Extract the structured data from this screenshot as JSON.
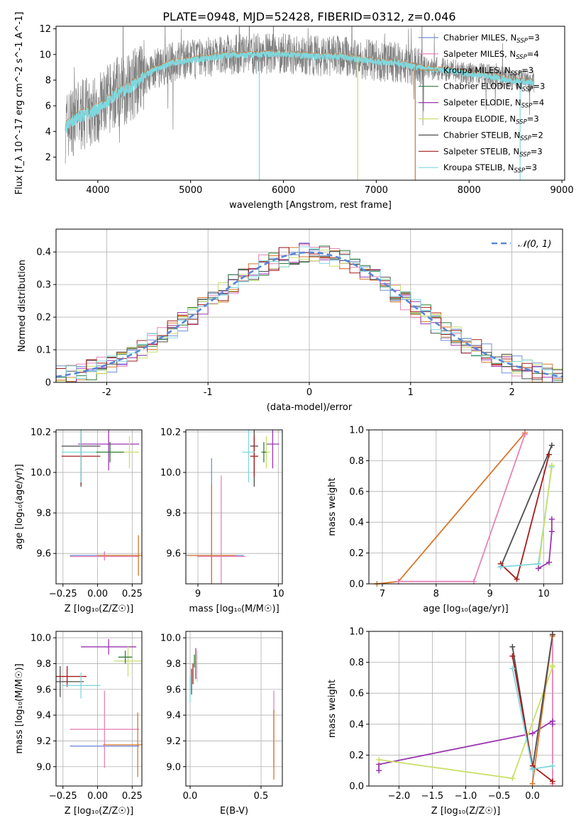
{
  "title": "PLATE=0948, MJD=52428, FIBERID=0312, z=0.046",
  "models": [
    {
      "label": "Chabrier MILES, N",
      "sub": "SSP",
      "suffix": "=3",
      "color": "#6f8fdc"
    },
    {
      "label": "Salpeter MILES, N",
      "sub": "SSP",
      "suffix": "=4",
      "color": "#e584b8"
    },
    {
      "label": "Kroupa MILES, N",
      "sub": "SSP",
      "suffix": "=3",
      "color": "#d8762a"
    },
    {
      "label": "Chabrier ELODIE, N",
      "sub": "SSP",
      "suffix": "=3",
      "color": "#2f7d3a"
    },
    {
      "label": "Salpeter ELODIE, N",
      "sub": "SSP",
      "suffix": "=4",
      "color": "#9a36b0"
    },
    {
      "label": "Kroupa ELODIE, N",
      "sub": "SSP",
      "suffix": "=3",
      "color": "#c9e06a"
    },
    {
      "label": "Chabrier STELIB, N",
      "sub": "SSP",
      "suffix": "=2",
      "color": "#4d4d4d"
    },
    {
      "label": "Salpeter STELIB, N",
      "sub": "SSP",
      "suffix": "=3",
      "color": "#a51c1c"
    },
    {
      "label": "Kroupa STELIB, N",
      "sub": "SSP",
      "suffix": "=3",
      "color": "#7fd8df"
    }
  ],
  "chart_data": [
    {
      "type": "line",
      "xlabel": "wavelength [Angstrom, rest frame]",
      "ylabel": "Flux [f_λ 10^-17 erg cm^-2 s^-1 A^-1]",
      "xlim": [
        3550,
        9030
      ],
      "ylim": [
        0.2,
        12.2
      ],
      "xticks": [
        4000,
        5000,
        6000,
        7000,
        8000,
        9000
      ],
      "yticks": [
        2,
        4,
        6,
        8,
        10,
        12
      ],
      "data_color": "#808080",
      "model_color": "#7fd8df",
      "legend": "right",
      "continuum": [
        [
          3650,
          4.3
        ],
        [
          3700,
          4.7
        ],
        [
          3800,
          5.2
        ],
        [
          3900,
          5.5
        ],
        [
          4000,
          5.8
        ],
        [
          4100,
          6.4
        ],
        [
          4200,
          7.0
        ],
        [
          4300,
          7.3
        ],
        [
          4400,
          7.8
        ],
        [
          4500,
          8.4
        ],
        [
          4600,
          8.8
        ],
        [
          4800,
          9.4
        ],
        [
          5000,
          9.6
        ],
        [
          5200,
          9.8
        ],
        [
          5400,
          10.0
        ],
        [
          5600,
          10.0
        ],
        [
          5800,
          10.1
        ],
        [
          6000,
          10.1
        ],
        [
          6200,
          10.0
        ],
        [
          6400,
          9.9
        ],
        [
          6600,
          9.9
        ],
        [
          6800,
          9.7
        ],
        [
          7000,
          9.5
        ],
        [
          7200,
          9.4
        ],
        [
          7400,
          9.1
        ],
        [
          7600,
          8.9
        ],
        [
          7800,
          8.8
        ],
        [
          8000,
          8.5
        ],
        [
          8200,
          8.4
        ],
        [
          8400,
          8.1
        ],
        [
          8600,
          7.9
        ],
        [
          8700,
          7.9
        ]
      ]
    },
    {
      "type": "histogram",
      "xlabel": "(data-model)/error",
      "ylabel": "Normed distribution",
      "xlim": [
        -2.5,
        2.5
      ],
      "ylim": [
        0,
        0.47
      ],
      "xticks": [
        -2,
        -1,
        0,
        1,
        2
      ],
      "yticks": [
        0.0,
        0.1,
        0.2,
        0.3,
        0.4
      ],
      "grid": true,
      "legend": "top-right",
      "gaussian_label": "𝒩(0, 1)",
      "gaussian_color": "#5b86d6",
      "bin_width": 0.1
    },
    {
      "type": "scatter",
      "xlabel": "Z [log₁₀(Z/Z☉)]",
      "ylabel": "age  [log₁₀(age/yr)]",
      "xlim": [
        -0.3,
        0.32
      ],
      "ylim": [
        9.45,
        10.21
      ],
      "xticks": [
        -0.25,
        0.0,
        0.25
      ],
      "xtick_labels": [
        "−0.25",
        "0.00",
        "0.25"
      ],
      "yticks": [
        9.6,
        9.8,
        10.0,
        10.2
      ],
      "ytick_labels": [
        "9.6",
        "9.8",
        "10.0",
        "10.2"
      ],
      "grid": true,
      "points": [
        {
          "model": 6,
          "x": -0.12,
          "y": 10.13,
          "xerr": 0.14,
          "yerr": 0.2
        },
        {
          "model": 7,
          "x": -0.12,
          "y": 10.08,
          "xerr": 0.14,
          "yerr": 0.14
        },
        {
          "model": 4,
          "x": 0.08,
          "y": 10.14,
          "xerr": 0.22,
          "yerr": 0.13
        },
        {
          "model": 5,
          "x": 0.23,
          "y": 10.1,
          "xerr": 0.07,
          "yerr": 0.08
        },
        {
          "model": 8,
          "x": -0.12,
          "y": 10.1,
          "xerr": 0.14,
          "yerr": 0.15
        },
        {
          "model": 3,
          "x": 0.09,
          "y": 10.1,
          "xerr": 0.1,
          "yerr": 0.05
        },
        {
          "model": 0,
          "x": 0.05,
          "y": 9.59,
          "xerr": 0.25,
          "yerr": 0.02
        },
        {
          "model": 1,
          "x": 0.05,
          "y": 9.585,
          "xerr": 0.25,
          "yerr": 0.02
        },
        {
          "model": 2,
          "x": 0.295,
          "y": 9.59,
          "xerr": 0.3,
          "yerr": 0.1
        }
      ]
    },
    {
      "type": "scatter",
      "xlabel": "mass [log₁₀(M/M☉)]",
      "ylabel": "",
      "xlim": [
        8.85,
        10.05
      ],
      "ylim": [
        9.45,
        10.21
      ],
      "xticks": [
        9,
        10
      ],
      "xtick_labels": [
        "9",
        "10"
      ],
      "yticks": [
        9.6,
        9.8,
        10.0,
        10.2
      ],
      "ytick_labels": [
        "9.6",
        "9.8",
        "10.0",
        "10.2"
      ],
      "grid": true,
      "points": [
        {
          "model": 6,
          "x": 9.7,
          "y": 10.13,
          "xerr": 0.05,
          "yerr": 0.2
        },
        {
          "model": 7,
          "x": 9.7,
          "y": 10.08,
          "xerr": 0.05,
          "yerr": 0.1
        },
        {
          "model": 4,
          "x": 9.93,
          "y": 10.14,
          "xerr": 0.08,
          "yerr": 0.12
        },
        {
          "model": 5,
          "x": 9.85,
          "y": 10.1,
          "xerr": 0.05,
          "yerr": 0.08
        },
        {
          "model": 8,
          "x": 9.63,
          "y": 10.1,
          "xerr": 0.08,
          "yerr": 0.15
        },
        {
          "model": 3,
          "x": 9.82,
          "y": 10.1,
          "xerr": 0.03,
          "yerr": 0.05
        },
        {
          "model": 0,
          "x": 9.17,
          "y": 9.59,
          "xerr": 0.4,
          "yerr": 0.48
        },
        {
          "model": 1,
          "x": 9.29,
          "y": 9.585,
          "xerr": 0.3,
          "yerr": 0.4
        },
        {
          "model": 2,
          "x": 9.17,
          "y": 9.59,
          "xerr": 0.3,
          "yerr": 0.35
        }
      ]
    },
    {
      "type": "line",
      "xlabel": "age  [log₁₀(age/yr)]",
      "ylabel": "mass weight",
      "xlim": [
        6.75,
        10.35
      ],
      "ylim": [
        0,
        1.0
      ],
      "xticks": [
        7,
        8,
        9,
        10
      ],
      "xtick_labels": [
        "7",
        "8",
        "9",
        "10"
      ],
      "yticks": [
        0.0,
        0.2,
        0.4,
        0.6,
        0.8,
        1.0
      ],
      "ytick_labels": [
        "0.0",
        "0.2",
        "0.4",
        "0.6",
        "0.8",
        "1.0"
      ],
      "grid": true,
      "series": [
        {
          "model": 2,
          "x": [
            6.9,
            7.3,
            9.65
          ],
          "y": [
            0.0,
            0.015,
            0.98
          ]
        },
        {
          "model": 1,
          "x": [
            7.3,
            8.7,
            9.65
          ],
          "y": [
            0.015,
            0.015,
            0.97
          ]
        },
        {
          "model": 6,
          "x": [
            9.2,
            10.15
          ],
          "y": [
            0.11,
            0.9
          ]
        },
        {
          "model": 7,
          "x": [
            9.2,
            9.5,
            10.1
          ],
          "y": [
            0.13,
            0.03,
            0.84
          ]
        },
        {
          "model": 8,
          "x": [
            9.2,
            9.9,
            10.15
          ],
          "y": [
            0.11,
            0.13,
            0.76
          ]
        },
        {
          "model": 5,
          "x": [
            9.9,
            10.15
          ],
          "y": [
            0.1,
            0.77
          ]
        },
        {
          "model": 4,
          "x": [
            9.9,
            10.1,
            10.15,
            10.15
          ],
          "y": [
            0.1,
            0.14,
            0.34,
            0.42
          ]
        }
      ]
    },
    {
      "type": "scatter",
      "xlabel": "Z [log₁₀(Z/Z☉)]",
      "ylabel": "mass [log₁₀(M/M☉)]",
      "xlim": [
        -0.3,
        0.32
      ],
      "ylim": [
        8.85,
        10.05
      ],
      "xticks": [
        -0.25,
        0.0,
        0.25
      ],
      "xtick_labels": [
        "−0.25",
        "0.00",
        "0.25"
      ],
      "yticks": [
        9.0,
        9.2,
        9.4,
        9.6,
        9.8,
        10.0
      ],
      "ytick_labels": [
        "9.0",
        "9.2",
        "9.4",
        "9.6",
        "9.8",
        "10.0"
      ],
      "grid": true,
      "points": [
        {
          "model": 6,
          "x": -0.27,
          "y": 9.66,
          "xerr": 0.17,
          "yerr": 0.12
        },
        {
          "model": 7,
          "x": -0.22,
          "y": 9.7,
          "xerr": 0.14,
          "yerr": 0.08
        },
        {
          "model": 4,
          "x": 0.08,
          "y": 9.93,
          "xerr": 0.2,
          "yerr": 0.06
        },
        {
          "model": 5,
          "x": 0.22,
          "y": 9.82,
          "xerr": 0.1,
          "yerr": 0.12
        },
        {
          "model": 8,
          "x": -0.12,
          "y": 9.63,
          "xerr": 0.14,
          "yerr": 0.1
        },
        {
          "model": 3,
          "x": 0.2,
          "y": 9.85,
          "xerr": 0.05,
          "yerr": 0.05
        },
        {
          "model": 0,
          "x": 0.05,
          "y": 9.16,
          "xerr": 0.25,
          "yerr": 0.02
        },
        {
          "model": 1,
          "x": 0.05,
          "y": 9.29,
          "xerr": 0.25,
          "yerr": 0.3
        },
        {
          "model": 2,
          "x": 0.29,
          "y": 9.17,
          "xerr": 0.25,
          "yerr": 0.25
        }
      ]
    },
    {
      "type": "scatter",
      "xlabel": "E(B-V)",
      "ylabel": "",
      "xlim": [
        -0.03,
        0.65
      ],
      "ylim": [
        8.85,
        10.05
      ],
      "xticks": [
        0.0,
        0.5
      ],
      "xtick_labels": [
        "0.0",
        "0.5"
      ],
      "yticks": [
        9.0,
        9.2,
        9.4,
        9.6,
        9.8,
        10.0
      ],
      "ytick_labels": [
        "9.0",
        "9.2",
        "9.4",
        "9.6",
        "9.8",
        "10.0"
      ],
      "grid": true,
      "points": [
        {
          "model": 6,
          "x": 0.01,
          "y": 9.66,
          "xerr": 0,
          "yerr": 0.1
        },
        {
          "model": 7,
          "x": 0.02,
          "y": 9.72,
          "xerr": 0,
          "yerr": 0.08
        },
        {
          "model": 4,
          "x": 0.04,
          "y": 9.8,
          "xerr": 0,
          "yerr": 0.12
        },
        {
          "model": 5,
          "x": 0.05,
          "y": 9.78,
          "xerr": 0,
          "yerr": 0.12
        },
        {
          "model": 8,
          "x": 0.0,
          "y": 9.6,
          "xerr": 0,
          "yerr": 0.1
        },
        {
          "model": 3,
          "x": 0.03,
          "y": 9.82,
          "xerr": 0,
          "yerr": 0.05
        },
        {
          "model": 1,
          "x": 0.59,
          "y": 9.29,
          "xerr": 0,
          "yerr": 0.3
        },
        {
          "model": 2,
          "x": 0.59,
          "y": 9.17,
          "xerr": 0,
          "yerr": 0.27
        }
      ]
    },
    {
      "type": "line",
      "xlabel": "Z [log₁₀(Z/Z☉)]",
      "ylabel": "mass weight",
      "xlim": [
        -2.45,
        0.45
      ],
      "ylim": [
        0,
        1.0
      ],
      "xticks": [
        -2.0,
        -1.5,
        -1.0,
        -0.5,
        0.0
      ],
      "xtick_labels": [
        "−2.0",
        "−1.5",
        "−1.0",
        "−0.5",
        "0.0"
      ],
      "yticks": [
        0.0,
        0.2,
        0.4,
        0.6,
        0.8,
        1.0
      ],
      "ytick_labels": [
        "0.0",
        "0.2",
        "0.4",
        "0.6",
        "0.8",
        "1.0"
      ],
      "grid": true,
      "series": [
        {
          "model": 4,
          "x": [
            -2.3,
            -2.3,
            0.0,
            0.3,
            0.3
          ],
          "y": [
            0.1,
            0.14,
            0.34,
            0.42,
            0.4
          ]
        },
        {
          "model": 5,
          "x": [
            -2.3,
            -0.3,
            0.3,
            0.3
          ],
          "y": [
            0.17,
            0.05,
            0.77,
            0.78
          ]
        },
        {
          "model": 1,
          "x": [
            0.3,
            0.3
          ],
          "y": [
            0.015,
            0.97
          ]
        },
        {
          "model": 2,
          "x": [
            0.0,
            0.3,
            0.3
          ],
          "y": [
            0.015,
            0.98,
            0.97
          ]
        },
        {
          "model": 6,
          "x": [
            -0.3,
            0.0,
            0.3
          ],
          "y": [
            0.9,
            0.11,
            0.98
          ]
        },
        {
          "model": 7,
          "x": [
            -0.3,
            0.0,
            0.3
          ],
          "y": [
            0.84,
            0.13,
            0.03
          ]
        },
        {
          "model": 8,
          "x": [
            -0.3,
            0.0,
            0.3
          ],
          "y": [
            0.76,
            0.11,
            0.13
          ]
        }
      ]
    }
  ]
}
